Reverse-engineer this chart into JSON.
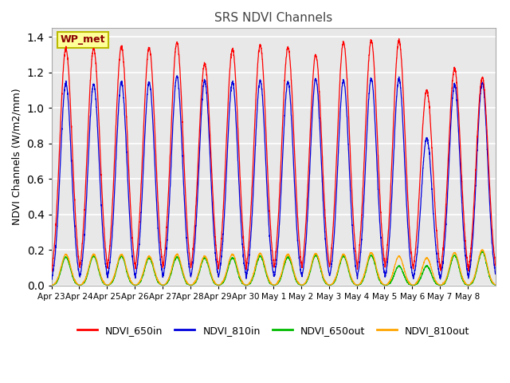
{
  "title": "SRS NDVI Channels",
  "ylabel": "NDVI Channels (W/m2/mm)",
  "annotation": "WP_met",
  "ylim": [
    0.0,
    1.45
  ],
  "yticks": [
    0.0,
    0.2,
    0.4,
    0.6,
    0.8,
    1.0,
    1.2,
    1.4
  ],
  "xtick_labels": [
    "Apr 23",
    "Apr 24",
    "Apr 25",
    "Apr 26",
    "Apr 27",
    "Apr 28",
    "Apr 29",
    "Apr 30",
    "May 1",
    "May 2",
    "May 3",
    "May 4",
    "May 5",
    "May 6",
    "May 7",
    "May 8"
  ],
  "colors": {
    "NDVI_650in": "#FF0000",
    "NDVI_810in": "#0000DD",
    "NDVI_650out": "#00BB00",
    "NDVI_810out": "#FFA500"
  },
  "fig_bg": "#FFFFFF",
  "ax_bg": "#E8E8E8",
  "grid_color": "#FFFFFF",
  "peaks_650in": [
    1.335,
    1.335,
    1.345,
    1.34,
    1.37,
    1.25,
    1.33,
    1.355,
    1.34,
    1.3,
    1.37,
    1.38,
    1.38,
    1.1,
    1.22,
    1.17
  ],
  "peaks_810in": [
    1.14,
    1.135,
    1.145,
    1.145,
    1.18,
    1.155,
    1.145,
    1.155,
    1.145,
    1.165,
    1.155,
    1.165,
    1.165,
    0.83,
    1.13,
    1.14
  ],
  "peaks_650out": [
    0.16,
    0.165,
    0.165,
    0.155,
    0.16,
    0.155,
    0.155,
    0.165,
    0.16,
    0.17,
    0.165,
    0.17,
    0.11,
    0.11,
    0.17,
    0.19
  ],
  "peaks_810out": [
    0.175,
    0.175,
    0.175,
    0.165,
    0.175,
    0.165,
    0.175,
    0.18,
    0.175,
    0.18,
    0.175,
    0.185,
    0.165,
    0.155,
    0.185,
    0.2
  ],
  "n_days": 16
}
